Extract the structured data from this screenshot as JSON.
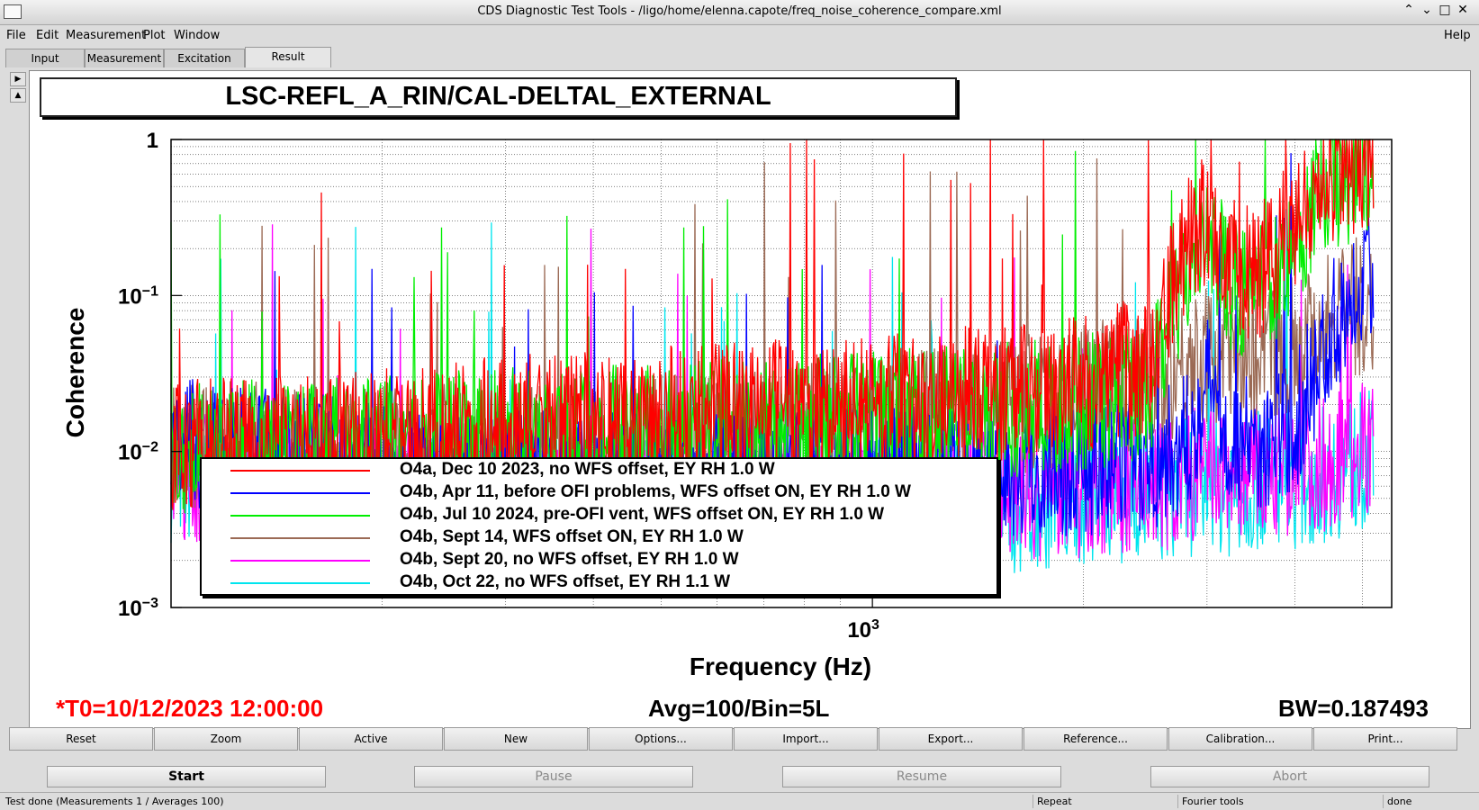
{
  "window": {
    "title": "CDS Diagnostic Test Tools - /ligo/home/elenna.capote/freq_noise_coherence_compare.xml",
    "controls": [
      "⌃",
      "⌄",
      "□",
      "✕"
    ]
  },
  "menu": {
    "items": [
      "File",
      "Edit",
      "Measurement",
      "Plot",
      "Window"
    ],
    "help": "Help"
  },
  "tabs": [
    "Input",
    "Measurement",
    "Excitation",
    "Result"
  ],
  "active_tab": "Result",
  "plot": {
    "title": "LSC-REFL_A_RIN/CAL-DELTAL_EXTERNAL",
    "info_left": "*T0=10/12/2023 12:00:00",
    "info_center": "Avg=100/Bin=5L",
    "info_right": "BW=0.187493"
  },
  "chart_data": {
    "type": "line",
    "xlabel": "Frequency (Hz)",
    "ylabel": "Coherence",
    "xscale": "log",
    "yscale": "log",
    "xlim": [
      100,
      5500
    ],
    "ylim": [
      0.001,
      1
    ],
    "x_ticks": [
      "10^3"
    ],
    "y_ticks": [
      "10^-3",
      "10^-2",
      "10^-1",
      "1"
    ],
    "grid": true,
    "legend_position": "bottom-center",
    "series": [
      {
        "name": "O4a, Dec 10 2023, no WFS offset, EY RH 1.0 W",
        "color": "#ff0000",
        "x": [
          100,
          150,
          200,
          300,
          500,
          700,
          1000,
          1500,
          2000,
          2500,
          2800,
          3000,
          3300,
          3600,
          4000,
          4500,
          5000
        ],
        "y": [
          0.015,
          0.015,
          0.017,
          0.02,
          0.023,
          0.025,
          0.028,
          0.032,
          0.038,
          0.05,
          0.3,
          0.45,
          0.2,
          0.2,
          0.4,
          0.8,
          1.0
        ]
      },
      {
        "name": "O4b, Apr 11, before OFI problems, WFS offset ON, EY RH 1.0 W",
        "color": "#0000ff",
        "x": [
          100,
          150,
          200,
          300,
          500,
          700,
          1000,
          1500,
          2000,
          2500,
          2800,
          3000,
          3300,
          3600,
          4000,
          4500,
          5000
        ],
        "y": [
          0.015,
          0.012,
          0.01,
          0.009,
          0.009,
          0.009,
          0.01,
          0.01,
          0.011,
          0.012,
          0.015,
          0.04,
          0.015,
          0.015,
          0.02,
          0.08,
          0.2
        ]
      },
      {
        "name": "O4b, Jul 10 2024, pre-OFI vent, WFS offset ON, EY RH 1.0 W",
        "color": "#00ee00",
        "x": [
          100,
          150,
          200,
          300,
          500,
          700,
          1000,
          1500,
          2000,
          2500,
          2800,
          3000,
          3300,
          3600,
          4000,
          4500,
          5000
        ],
        "y": [
          0.015,
          0.014,
          0.015,
          0.017,
          0.018,
          0.02,
          0.022,
          0.025,
          0.028,
          0.035,
          0.2,
          0.3,
          0.15,
          0.15,
          0.3,
          0.7,
          0.9
        ]
      },
      {
        "name": "O4b, Sept 14, WFS offset ON, EY RH 1.0 W",
        "color": "#9b6a55",
        "x": [
          100,
          150,
          200,
          300,
          500,
          700,
          1000,
          1500,
          2000,
          2500,
          2800,
          3000,
          3300,
          3600,
          4000,
          4500,
          5000
        ],
        "y": [
          0.015,
          0.013,
          0.013,
          0.014,
          0.015,
          0.017,
          0.02,
          0.025,
          0.032,
          0.04,
          0.05,
          0.055,
          0.06,
          0.06,
          0.07,
          0.1,
          0.12
        ]
      },
      {
        "name": "O4b, Sept 20, no WFS offset, EY RH 1.0 W",
        "color": "#ff00ff",
        "x": [
          100,
          150,
          200,
          300,
          500,
          700,
          1000,
          1500,
          2000,
          2500,
          2800,
          3000,
          3300,
          3600,
          4000,
          4500,
          5000
        ],
        "y": [
          0.01,
          0.008,
          0.007,
          0.006,
          0.006,
          0.006,
          0.007,
          0.007,
          0.008,
          0.008,
          0.009,
          0.01,
          0.01,
          0.01,
          0.01,
          0.012,
          0.015
        ]
      },
      {
        "name": "O4b, Oct 22, no WFS offset, EY RH 1.1 W",
        "color": "#00e5ee",
        "x": [
          100,
          150,
          200,
          300,
          500,
          700,
          1000,
          1500,
          2000,
          2500,
          2800,
          3000,
          3300,
          3600,
          4000,
          4500,
          5000
        ],
        "y": [
          0.01,
          0.008,
          0.007,
          0.006,
          0.006,
          0.006,
          0.006,
          0.006,
          0.007,
          0.007,
          0.008,
          0.008,
          0.008,
          0.009,
          0.009,
          0.01,
          0.012
        ]
      }
    ]
  },
  "buttons": [
    "Reset",
    "Zoom",
    "Active",
    "New",
    "Options...",
    "Import...",
    "Export...",
    "Reference...",
    "Calibration...",
    "Print..."
  ],
  "controls": {
    "start": "Start",
    "pause": "Pause",
    "resume": "Resume",
    "abort": "Abort"
  },
  "status": {
    "message": "Test done (Measurements 1 / Averages 100)",
    "repeat": "Repeat",
    "tools": "Fourier tools",
    "state": "done"
  }
}
